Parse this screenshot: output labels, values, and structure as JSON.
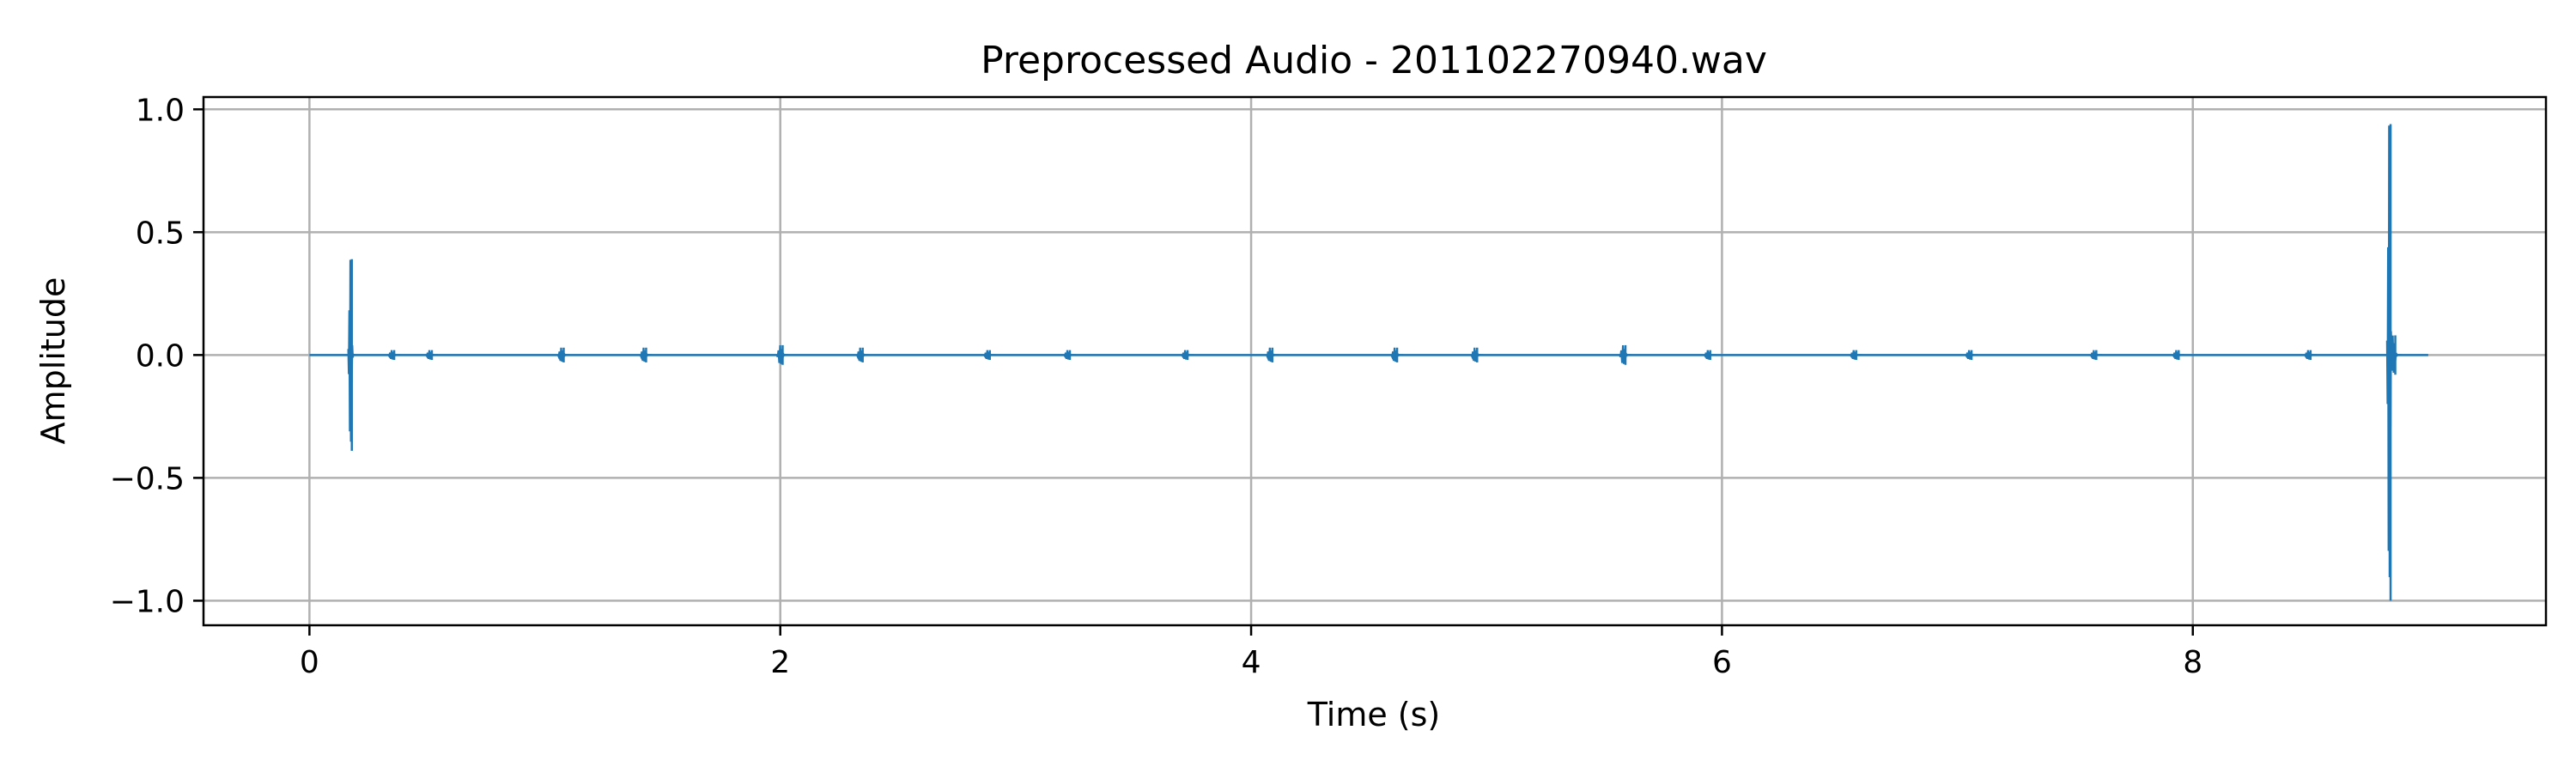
{
  "chart_data": {
    "type": "line",
    "title": "Preprocessed Audio - 201102270940.wav",
    "xlabel": "Time (s)",
    "ylabel": "Amplitude",
    "xlim": [
      -0.45,
      9.5
    ],
    "ylim": [
      -1.1,
      1.05
    ],
    "xticks": [
      0,
      2,
      4,
      6,
      8
    ],
    "xtick_labels": [
      "0",
      "2",
      "4",
      "6",
      "8"
    ],
    "yticks": [
      -1.0,
      -0.5,
      0.0,
      0.5,
      1.0
    ],
    "ytick_labels": [
      "−1.0",
      "−0.5",
      "0.0",
      "0.5",
      "1.0"
    ],
    "grid": true,
    "duration": 9.0,
    "series": [
      {
        "color": "#1f77b4",
        "events": [
          {
            "t": 0.18,
            "max": 0.39,
            "min": -0.39
          },
          {
            "t": 0.36,
            "max": 0.02,
            "min": -0.02
          },
          {
            "t": 0.52,
            "max": 0.02,
            "min": -0.02
          },
          {
            "t": 1.08,
            "max": 0.03,
            "min": -0.03
          },
          {
            "t": 1.43,
            "max": 0.03,
            "min": -0.03
          },
          {
            "t": 2.01,
            "max": 0.04,
            "min": -0.04
          },
          {
            "t": 2.35,
            "max": 0.03,
            "min": -0.03
          },
          {
            "t": 2.89,
            "max": 0.02,
            "min": -0.02
          },
          {
            "t": 3.23,
            "max": 0.02,
            "min": -0.02
          },
          {
            "t": 3.73,
            "max": 0.02,
            "min": -0.02
          },
          {
            "t": 4.09,
            "max": 0.03,
            "min": -0.03
          },
          {
            "t": 4.62,
            "max": 0.03,
            "min": -0.03
          },
          {
            "t": 4.96,
            "max": 0.03,
            "min": -0.03
          },
          {
            "t": 5.59,
            "max": 0.04,
            "min": -0.04
          },
          {
            "t": 5.95,
            "max": 0.02,
            "min": -0.02
          },
          {
            "t": 6.57,
            "max": 0.02,
            "min": -0.02
          },
          {
            "t": 7.06,
            "max": 0.02,
            "min": -0.02
          },
          {
            "t": 7.59,
            "max": 0.02,
            "min": -0.02
          },
          {
            "t": 7.94,
            "max": 0.02,
            "min": -0.02
          },
          {
            "t": 8.5,
            "max": 0.02,
            "min": -0.02
          },
          {
            "t": 8.84,
            "max": 0.94,
            "min": -1.0
          },
          {
            "t": 8.86,
            "max": 0.08,
            "min": -0.08
          }
        ]
      }
    ]
  }
}
